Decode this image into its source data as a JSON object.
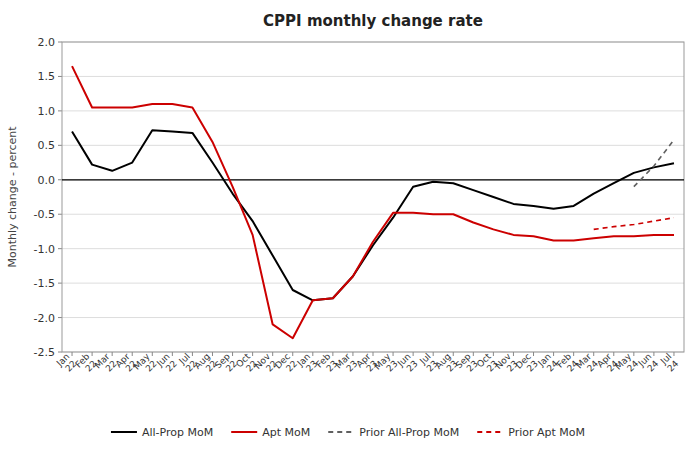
{
  "chart_data": {
    "type": "line",
    "title": "CPPI  monthly  change  rate",
    "y_label": "Monthly change - percent",
    "categories": [
      "Jan\n22",
      "Feb\n22",
      "Mar\n22",
      "Apr\n22",
      "May\n22",
      "Jun\n22",
      "Jul\n22",
      "Aug\n22",
      "Sep\n22",
      "Oct\n22",
      "Nov\n22",
      "Dec\n22",
      "Jan\n23",
      "Feb\n23",
      "Mar\n23",
      "Apr\n23",
      "May\n23",
      "Jun\n23",
      "Jul\n23",
      "Aug\n23",
      "Sep\n23",
      "Oct\n23",
      "Nov\n23",
      "Dec\n23",
      "Jan\n24",
      "Feb\n24",
      "Mar\n24",
      "Apr\n24",
      "May\n24",
      "Jun\n24",
      "Jul\n24"
    ],
    "series": [
      {
        "name": "All-Prop MoM",
        "color": "#000000",
        "line_style": "solid",
        "values": [
          0.7,
          0.22,
          0.13,
          0.25,
          0.72,
          0.7,
          0.68,
          0.25,
          -0.2,
          -0.6,
          -1.1,
          -1.6,
          -1.75,
          -1.72,
          -1.4,
          -0.95,
          -0.55,
          -0.1,
          -0.03,
          -0.05,
          -0.15,
          -0.25,
          -0.35,
          -0.38,
          -0.42,
          -0.38,
          -0.2,
          -0.05,
          0.1,
          0.18,
          0.24
        ]
      },
      {
        "name": "Apt MoM",
        "color": "#cc0000",
        "line_style": "solid",
        "values": [
          1.65,
          1.05,
          1.05,
          1.05,
          1.1,
          1.1,
          1.05,
          0.55,
          -0.1,
          -0.8,
          -2.1,
          -2.3,
          -1.75,
          -1.72,
          -1.4,
          -0.9,
          -0.48,
          -0.48,
          -0.5,
          -0.5,
          -0.62,
          -0.72,
          -0.8,
          -0.82,
          -0.88,
          -0.88,
          -0.85,
          -0.82,
          -0.82,
          -0.8,
          -0.8
        ]
      },
      {
        "name": "Prior All-Prop MoM",
        "color": "#606060",
        "line_style": "dashed",
        "values": [
          null,
          null,
          null,
          null,
          null,
          null,
          null,
          null,
          null,
          null,
          null,
          null,
          null,
          null,
          null,
          null,
          null,
          null,
          null,
          null,
          null,
          null,
          null,
          null,
          null,
          null,
          null,
          null,
          -0.1,
          0.2,
          0.58
        ]
      },
      {
        "name": "Prior Apt MoM",
        "color": "#cc0000",
        "line_style": "dashed",
        "values": [
          null,
          null,
          null,
          null,
          null,
          null,
          null,
          null,
          null,
          null,
          null,
          null,
          null,
          null,
          null,
          null,
          null,
          null,
          null,
          null,
          null,
          null,
          null,
          null,
          null,
          null,
          -0.72,
          -0.68,
          -0.65,
          -0.6,
          -0.55
        ]
      }
    ],
    "ylim": [
      -2.5,
      2.0
    ],
    "yticks": [
      -2.5,
      {
        "value": -2.0,
        "label": "-2.0"
      },
      -1.5,
      {
        "value": -1.0,
        "label": "-1.0"
      },
      -0.5,
      {
        "value": 0.0,
        "label": "0.0"
      },
      0.5,
      {
        "value": 1.0,
        "label": "1.0"
      },
      1.5,
      {
        "value": 2.0,
        "label": "2.0"
      }
    ],
    "grid": true,
    "legend": "bottom"
  }
}
